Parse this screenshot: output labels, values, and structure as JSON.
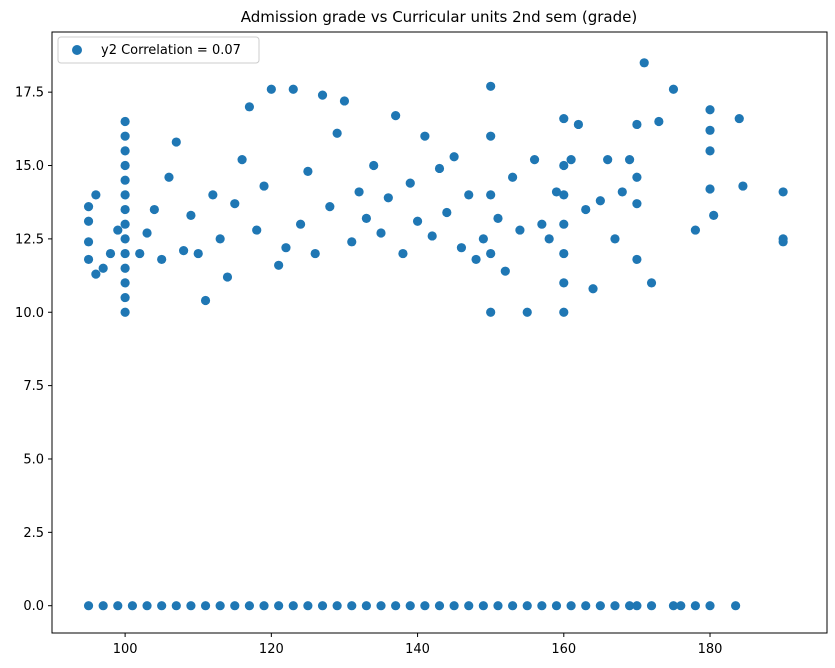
{
  "chart_data": {
    "type": "scatter",
    "title": "Admission grade vs Curricular units 2nd sem (grade)",
    "xlabel": "",
    "ylabel": "",
    "xlim": [
      90,
      196
    ],
    "ylim": [
      -0.93,
      19.55
    ],
    "xticks": [
      100,
      120,
      140,
      160,
      180
    ],
    "yticks": [
      0.0,
      2.5,
      5.0,
      7.5,
      10.0,
      12.5,
      15.0,
      17.5
    ],
    "ytick_labels": [
      "0.0",
      "2.5",
      "5.0",
      "7.5",
      "10.0",
      "12.5",
      "15.0",
      "17.5"
    ],
    "grid": false,
    "legend": {
      "placement": "top-left"
    },
    "marker_color": "#1f77b4",
    "series": [
      {
        "name": "y2 Correlation = 0.07",
        "points": [
          [
            95,
            0
          ],
          [
            97,
            0
          ],
          [
            99,
            0
          ],
          [
            101,
            0
          ],
          [
            103,
            0
          ],
          [
            105,
            0
          ],
          [
            107,
            0
          ],
          [
            109,
            0
          ],
          [
            111,
            0
          ],
          [
            113,
            0
          ],
          [
            115,
            0
          ],
          [
            117,
            0
          ],
          [
            119,
            0
          ],
          [
            121,
            0
          ],
          [
            123,
            0
          ],
          [
            125,
            0
          ],
          [
            127,
            0
          ],
          [
            129,
            0
          ],
          [
            131,
            0
          ],
          [
            133,
            0
          ],
          [
            135,
            0
          ],
          [
            137,
            0
          ],
          [
            139,
            0
          ],
          [
            141,
            0
          ],
          [
            143,
            0
          ],
          [
            145,
            0
          ],
          [
            147,
            0
          ],
          [
            149,
            0
          ],
          [
            151,
            0
          ],
          [
            153,
            0
          ],
          [
            155,
            0
          ],
          [
            157,
            0
          ],
          [
            159,
            0
          ],
          [
            161,
            0
          ],
          [
            163,
            0
          ],
          [
            165,
            0
          ],
          [
            167,
            0
          ],
          [
            169,
            0
          ],
          [
            170,
            0
          ],
          [
            172,
            0
          ],
          [
            175,
            0
          ],
          [
            176,
            0
          ],
          [
            178,
            0
          ],
          [
            180,
            0
          ],
          [
            183.5,
            0
          ],
          [
            95,
            11.8
          ],
          [
            95,
            12.4
          ],
          [
            95,
            13.1
          ],
          [
            95,
            13.6
          ],
          [
            96,
            11.3
          ],
          [
            96,
            14.0
          ],
          [
            97,
            11.5
          ],
          [
            98,
            12.0
          ],
          [
            99,
            12.8
          ],
          [
            100,
            10.0
          ],
          [
            100,
            10.5
          ],
          [
            100,
            11.0
          ],
          [
            100,
            11.5
          ],
          [
            100,
            12.0
          ],
          [
            100,
            12.5
          ],
          [
            100,
            13.0
          ],
          [
            100,
            13.5
          ],
          [
            100,
            14.0
          ],
          [
            100,
            14.5
          ],
          [
            100,
            15.0
          ],
          [
            100,
            15.5
          ],
          [
            100,
            16.0
          ],
          [
            100,
            16.5
          ],
          [
            102,
            12.0
          ],
          [
            103,
            12.7
          ],
          [
            104,
            13.5
          ],
          [
            105,
            11.8
          ],
          [
            106,
            14.6
          ],
          [
            107,
            15.8
          ],
          [
            108,
            12.1
          ],
          [
            109,
            13.3
          ],
          [
            110,
            12.0
          ],
          [
            111,
            10.4
          ],
          [
            112,
            14.0
          ],
          [
            113,
            12.5
          ],
          [
            114,
            11.2
          ],
          [
            115,
            13.7
          ],
          [
            116,
            15.2
          ],
          [
            117,
            17.0
          ],
          [
            118,
            12.8
          ],
          [
            119,
            14.3
          ],
          [
            120,
            17.6
          ],
          [
            121,
            11.6
          ],
          [
            122,
            12.2
          ],
          [
            123,
            17.6
          ],
          [
            124,
            13.0
          ],
          [
            125,
            14.8
          ],
          [
            126,
            12.0
          ],
          [
            127,
            17.4
          ],
          [
            128,
            13.6
          ],
          [
            129,
            16.1
          ],
          [
            130,
            17.2
          ],
          [
            131,
            12.4
          ],
          [
            132,
            14.1
          ],
          [
            133,
            13.2
          ],
          [
            134,
            15.0
          ],
          [
            135,
            12.7
          ],
          [
            136,
            13.9
          ],
          [
            137,
            16.7
          ],
          [
            138,
            12.0
          ],
          [
            139,
            14.4
          ],
          [
            140,
            13.1
          ],
          [
            141,
            16.0
          ],
          [
            142,
            12.6
          ],
          [
            143,
            14.9
          ],
          [
            144,
            13.4
          ],
          [
            145,
            15.3
          ],
          [
            146,
            12.2
          ],
          [
            147,
            14.0
          ],
          [
            148,
            11.8
          ],
          [
            149,
            12.5
          ],
          [
            150,
            17.7
          ],
          [
            150,
            10.0
          ],
          [
            150,
            12.0
          ],
          [
            150,
            14.0
          ],
          [
            150,
            16.0
          ],
          [
            151,
            13.2
          ],
          [
            152,
            11.4
          ],
          [
            153,
            14.6
          ],
          [
            154,
            12.8
          ],
          [
            155,
            10.0
          ],
          [
            156,
            15.2
          ],
          [
            157,
            13.0
          ],
          [
            158,
            12.5
          ],
          [
            159,
            14.1
          ],
          [
            160,
            16.6
          ],
          [
            160,
            10.0
          ],
          [
            160,
            11.0
          ],
          [
            160,
            12.0
          ],
          [
            160,
            13.0
          ],
          [
            160,
            14.0
          ],
          [
            160,
            15.0
          ],
          [
            161,
            15.2
          ],
          [
            162,
            16.4
          ],
          [
            163,
            13.5
          ],
          [
            164,
            10.8
          ],
          [
            165,
            13.8
          ],
          [
            166,
            15.2
          ],
          [
            167,
            12.5
          ],
          [
            168,
            14.1
          ],
          [
            169,
            15.2
          ],
          [
            170,
            16.4
          ],
          [
            170,
            11.8
          ],
          [
            170,
            13.7
          ],
          [
            170,
            14.6
          ],
          [
            171,
            18.5
          ],
          [
            172,
            11.0
          ],
          [
            173,
            16.5
          ],
          [
            175,
            17.6
          ],
          [
            178,
            12.8
          ],
          [
            180,
            16.9
          ],
          [
            180,
            16.2
          ],
          [
            180,
            15.5
          ],
          [
            180,
            14.2
          ],
          [
            180.5,
            13.3
          ],
          [
            184,
            16.6
          ],
          [
            184.5,
            14.3
          ],
          [
            190,
            14.1
          ],
          [
            190,
            12.5
          ],
          [
            190,
            12.4
          ]
        ]
      }
    ]
  }
}
